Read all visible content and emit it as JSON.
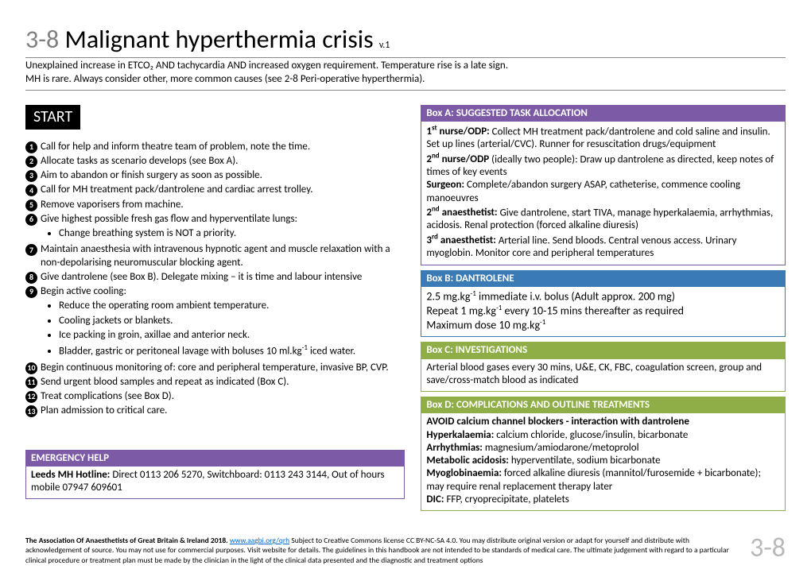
{
  "title": {
    "prefix": "3-8",
    "main": " Malignant hyperthermia crisis ",
    "version": "v.1"
  },
  "subtitle1": "Unexplained increase in ETCO₂ AND tachycardia AND increased oxygen requirement. Temperature rise is a late sign.",
  "subtitle2": "MH is rare. Always consider other, more common causes (see 2-8 Peri-operative hyperthermia).",
  "start": "START",
  "steps": {
    "s1": "Call for help and inform theatre team of problem, note the time.",
    "s2": "Allocate tasks as scenario develops (see Box A).",
    "s3": "Aim to abandon or finish surgery as soon as possible.",
    "s4": "Call for MH treatment pack/dantrolene and cardiac arrest trolley.",
    "s5": "Remove vaporisers from machine.",
    "s6": "Give highest possible fresh gas flow and hyperventilate lungs:",
    "s6b": "Change breathing system is NOT a priority.",
    "s7": "Maintain anaesthesia with intravenous hypnotic agent and muscle relaxation with a non-depolarising neuromuscular blocking agent.",
    "s8": "Give dantrolene (see Box B).  Delegate mixing – it is time and labour intensive",
    "s9": "Begin active cooling:",
    "s9b1": "Reduce the operating room ambient temperature.",
    "s9b2": "Cooling jackets or blankets.",
    "s9b3": "Ice packing in groin, axillae and anterior neck.",
    "s9b4_a": "Bladder, gastric or peritoneal lavage with boluses 10 ml.kg",
    "s9b4_b": " iced water.",
    "s10": "Begin continuous monitoring of: core and peripheral temperature, invasive BP, CVP.",
    "s11": "Send urgent blood samples and repeat as indicated (Box C).",
    "s12": "Treat complications (see Box D).",
    "s13": "Plan admission to critical care."
  },
  "emerg": {
    "header": "EMERGENCY HELP",
    "body_b": "Leeds MH Hotline:",
    "body": " Direct 0113 206 5270, Switchboard: 0113 243 3144, Out of hours mobile 07947 609601"
  },
  "boxA": {
    "header": "Box A: SUGGESTED TASK ALLOCATION",
    "l1a": "1",
    "l1b": "st",
    "l1c": " nurse/ODP:",
    "l1d": " Collect MH treatment pack/dantrolene and cold saline and insulin. Set up lines (arterial/CVC).  Runner for resuscitation drugs/equipment",
    "l2a": "2",
    "l2b": "nd",
    "l2c": " nurse/ODP",
    "l2d": " (ideally two people): Draw up dantrolene as directed, keep notes of times of key events",
    "l3a": "Surgeon:",
    "l3b": "   Complete/abandon surgery ASAP, catheterise, commence cooling manoeuvres",
    "l4a": "2",
    "l4b": "nd",
    "l4c": " anaesthetist:",
    "l4d": " Give dantrolene, start TIVA, manage hyperkalaemia, arrhythmias, acidosis. Renal protection (forced alkaline diuresis)",
    "l5a": "3",
    "l5b": "rd",
    "l5c": " anaesthetist:",
    "l5d": " Arterial line. Send bloods. Central venous access. Urinary myoglobin. Monitor core and peripheral temperatures"
  },
  "boxB": {
    "header": "Box B: DANTROLENE",
    "l1a": "2.5 mg.kg",
    "l1b": " immediate i.v. bolus (Adult approx. 200 mg)",
    "l2a": "Repeat 1 mg.kg",
    "l2b": " every 10-15 mins thereafter as required",
    "l3a": "Maximum dose 10 mg.kg"
  },
  "boxC": {
    "header": "Box C: INVESTIGATIONS",
    "body": "Arterial blood gases every 30 mins, U&E, CK, FBC, coagulation screen, group and save/cross-match blood as indicated"
  },
  "boxD": {
    "header": "Box D: COMPLICATIONS AND OUTLINE TREATMENTS",
    "l1": "AVOID calcium channel blockers - interaction with dantrolene",
    "l2a": "Hyperkalaemia:",
    "l2b": " calcium chloride, glucose/insulin, bicarbonate",
    "l3a": "Arrhythmias:",
    "l3b": "  magnesium/amiodarone/metoprolol",
    "l4a": "Metabolic acidosis:",
    "l4b": " hyperventilate, sodium bicarbonate",
    "l5a": "Myoglobinaemia:",
    "l5b": " forced alkaline diuresis (mannitol/furosemide + bicarbonate); may require renal replacement therapy later",
    "l6a": "DIC:",
    "l6b": " FFP, cryoprecipitate, platelets"
  },
  "footer": {
    "bold": "The Association Of Anaesthetists of Great Britain & Ireland 2018. ",
    "link": "www.aagbi.org/qrh",
    "rest": " Subject to Creative Commons license CC BY-NC-SA 4.0. You may distribute original version or adapt for yourself and distribute with acknowledgement of source. You may not use for commercial purposes. Visit website for details. The guidelines in this handbook are not intended to be standards of medical care. The ultimate judgement with regard to a particular clinical procedure or treatment plan must be made by the clinician in the light of the clinical data presented and the diagnostic and treatment options",
    "num": "3-8"
  },
  "colors": {
    "purple": "#7c5aa6",
    "blue": "#3a7ab5",
    "green": "#8fae48",
    "grey_text": "#7f7f7f",
    "footer_num": "#b8b8b8"
  }
}
